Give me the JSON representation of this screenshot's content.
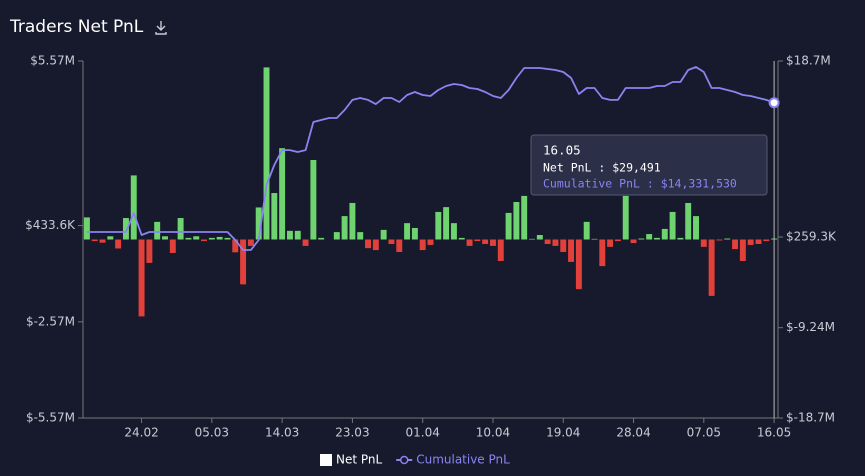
{
  "chart_data": {
    "type": "bar",
    "title": "Traders Net PnL",
    "categories": [
      null,
      null,
      null,
      null,
      null,
      null,
      null,
      "24.02",
      null,
      null,
      null,
      null,
      null,
      null,
      null,
      null,
      "05.03",
      null,
      null,
      null,
      null,
      null,
      null,
      null,
      null,
      "14.03",
      null,
      null,
      null,
      null,
      null,
      null,
      null,
      null,
      "23.03",
      null,
      null,
      null,
      null,
      null,
      null,
      null,
      null,
      "01.04",
      null,
      null,
      null,
      null,
      null,
      null,
      null,
      null,
      "10.04",
      null,
      null,
      null,
      null,
      null,
      null,
      null,
      null,
      "19.04",
      null,
      null,
      null,
      null,
      null,
      null,
      null,
      null,
      "28.04",
      null,
      null,
      null,
      null,
      null,
      null,
      null,
      null,
      "07.05",
      null,
      null,
      null,
      null,
      null,
      null,
      null,
      null,
      "16.05"
    ],
    "series": [
      {
        "name": "Net PnL",
        "type": "bar",
        "color": "#ffffff",
        "positive_color": "#6fd46f",
        "negative_color": "#e2403a",
        "values": [
          690000,
          -50000,
          -100000,
          100000,
          -280000,
          670000,
          2000000,
          -2400000,
          -730000,
          550000,
          100000,
          -420000,
          670000,
          50000,
          100000,
          -50000,
          50000,
          80000,
          50000,
          -400000,
          -1400000,
          -200000,
          1000000,
          5370000,
          1450000,
          2850000,
          270000,
          270000,
          -200000,
          2480000,
          50000,
          0,
          230000,
          730000,
          1140000,
          230000,
          -270000,
          -330000,
          300000,
          -140000,
          -390000,
          510000,
          360000,
          -330000,
          -170000,
          860000,
          1010000,
          510000,
          50000,
          -200000,
          -50000,
          -140000,
          -200000,
          -670000,
          830000,
          1170000,
          1360000,
          20000,
          140000,
          -140000,
          -200000,
          -390000,
          -700000,
          -1550000,
          550000,
          20000,
          -830000,
          -230000,
          -50000,
          1360000,
          -110000,
          30000,
          170000,
          50000,
          330000,
          860000,
          50000,
          1140000,
          730000,
          -230000,
          -1760000,
          -30000,
          30000,
          -300000,
          -670000,
          -170000,
          -140000,
          -50000,
          29491
        ]
      },
      {
        "name": "Cumulative PnL",
        "type": "line",
        "axis": "y2",
        "color": "#8a84f2",
        "values": [
          790000,
          790000,
          790000,
          790000,
          790000,
          790000,
          2780000,
          470000,
          790000,
          790000,
          790000,
          790000,
          790000,
          790000,
          790000,
          790000,
          790000,
          790000,
          790000,
          -50000,
          -1100000,
          -1100000,
          -50000,
          5710000,
          7800000,
          9370000,
          9370000,
          9170000,
          9370000,
          12310000,
          12520000,
          12730000,
          12730000,
          13570000,
          14620000,
          14820000,
          14620000,
          14190000,
          14820000,
          14820000,
          14400000,
          15140000,
          15450000,
          15140000,
          15030000,
          15660000,
          16080000,
          16290000,
          16190000,
          15870000,
          15770000,
          15450000,
          15030000,
          14820000,
          15660000,
          16920000,
          17970000,
          17970000,
          17970000,
          17860000,
          17760000,
          17550000,
          16920000,
          15240000,
          15870000,
          15870000,
          14820000,
          14620000,
          14620000,
          15870000,
          15870000,
          15870000,
          15870000,
          16080000,
          16080000,
          16500000,
          16500000,
          17760000,
          18070000,
          17550000,
          15870000,
          15870000,
          15660000,
          15450000,
          15140000,
          15030000,
          14820000,
          14620000,
          14331530
        ]
      }
    ],
    "ylim": [
      -5570000,
      5570000
    ],
    "yticks": [
      {
        "value": 5570000,
        "label": "$5.57M"
      },
      {
        "value": 433600,
        "label": "$433.6K"
      },
      {
        "value": -2570000,
        "label": "$-2.57M"
      },
      {
        "value": -5570000,
        "label": "$-5.57M"
      }
    ],
    "y2lim": [
      -18700000,
      18700000
    ],
    "y2ticks": [
      {
        "value": 18700000,
        "label": "$18.7M"
      },
      {
        "value": 259300,
        "label": "$259.3K"
      },
      {
        "value": -9240000,
        "label": "$-9.24M"
      },
      {
        "value": -18700000,
        "label": "$-18.7M"
      }
    ],
    "grid": false,
    "legend": "bottom",
    "tooltip": {
      "title": "16.05",
      "lines": [
        "Net PnL : $29,491",
        "Cumulative PnL : $14,331,530"
      ]
    }
  }
}
